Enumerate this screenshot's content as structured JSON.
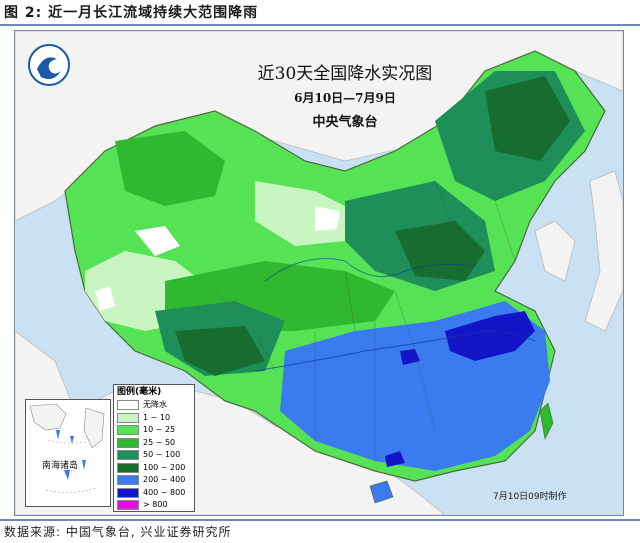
{
  "figure_title": "图 2: 近一月长江流域持续大范围降雨",
  "source_note": "数据来源: 中国气象台, 兴业证券研究所",
  "map": {
    "title": "近30天全国降水实况图",
    "date_range": "6月10日—7月9日",
    "agency": "中央气象台",
    "timestamp": "7月10日09时制作",
    "inset_label": "南海诸岛",
    "logo_icon": "cma-logo-icon"
  },
  "legend": {
    "title": "图例(毫米)",
    "items": [
      {
        "label": "无降水",
        "color": "#ffffff"
      },
      {
        "label": "1 ~ 10",
        "color": "#c8f5c0"
      },
      {
        "label": "10 ~ 25",
        "color": "#55e355"
      },
      {
        "label": "25 ~ 50",
        "color": "#30b830"
      },
      {
        "label": "50 ~ 100",
        "color": "#1e8f58"
      },
      {
        "label": "100 ~ 200",
        "color": "#176d30"
      },
      {
        "label": "200 ~ 400",
        "color": "#3a7cf0"
      },
      {
        "label": "400 ~ 800",
        "color": "#1414c8"
      },
      {
        "label": "> 800",
        "color": "#e010e0"
      }
    ]
  },
  "colors": {
    "sea": "#c9e1f2",
    "neighbor_land": "#f3f3f3",
    "rule": "#6a8bb8"
  }
}
